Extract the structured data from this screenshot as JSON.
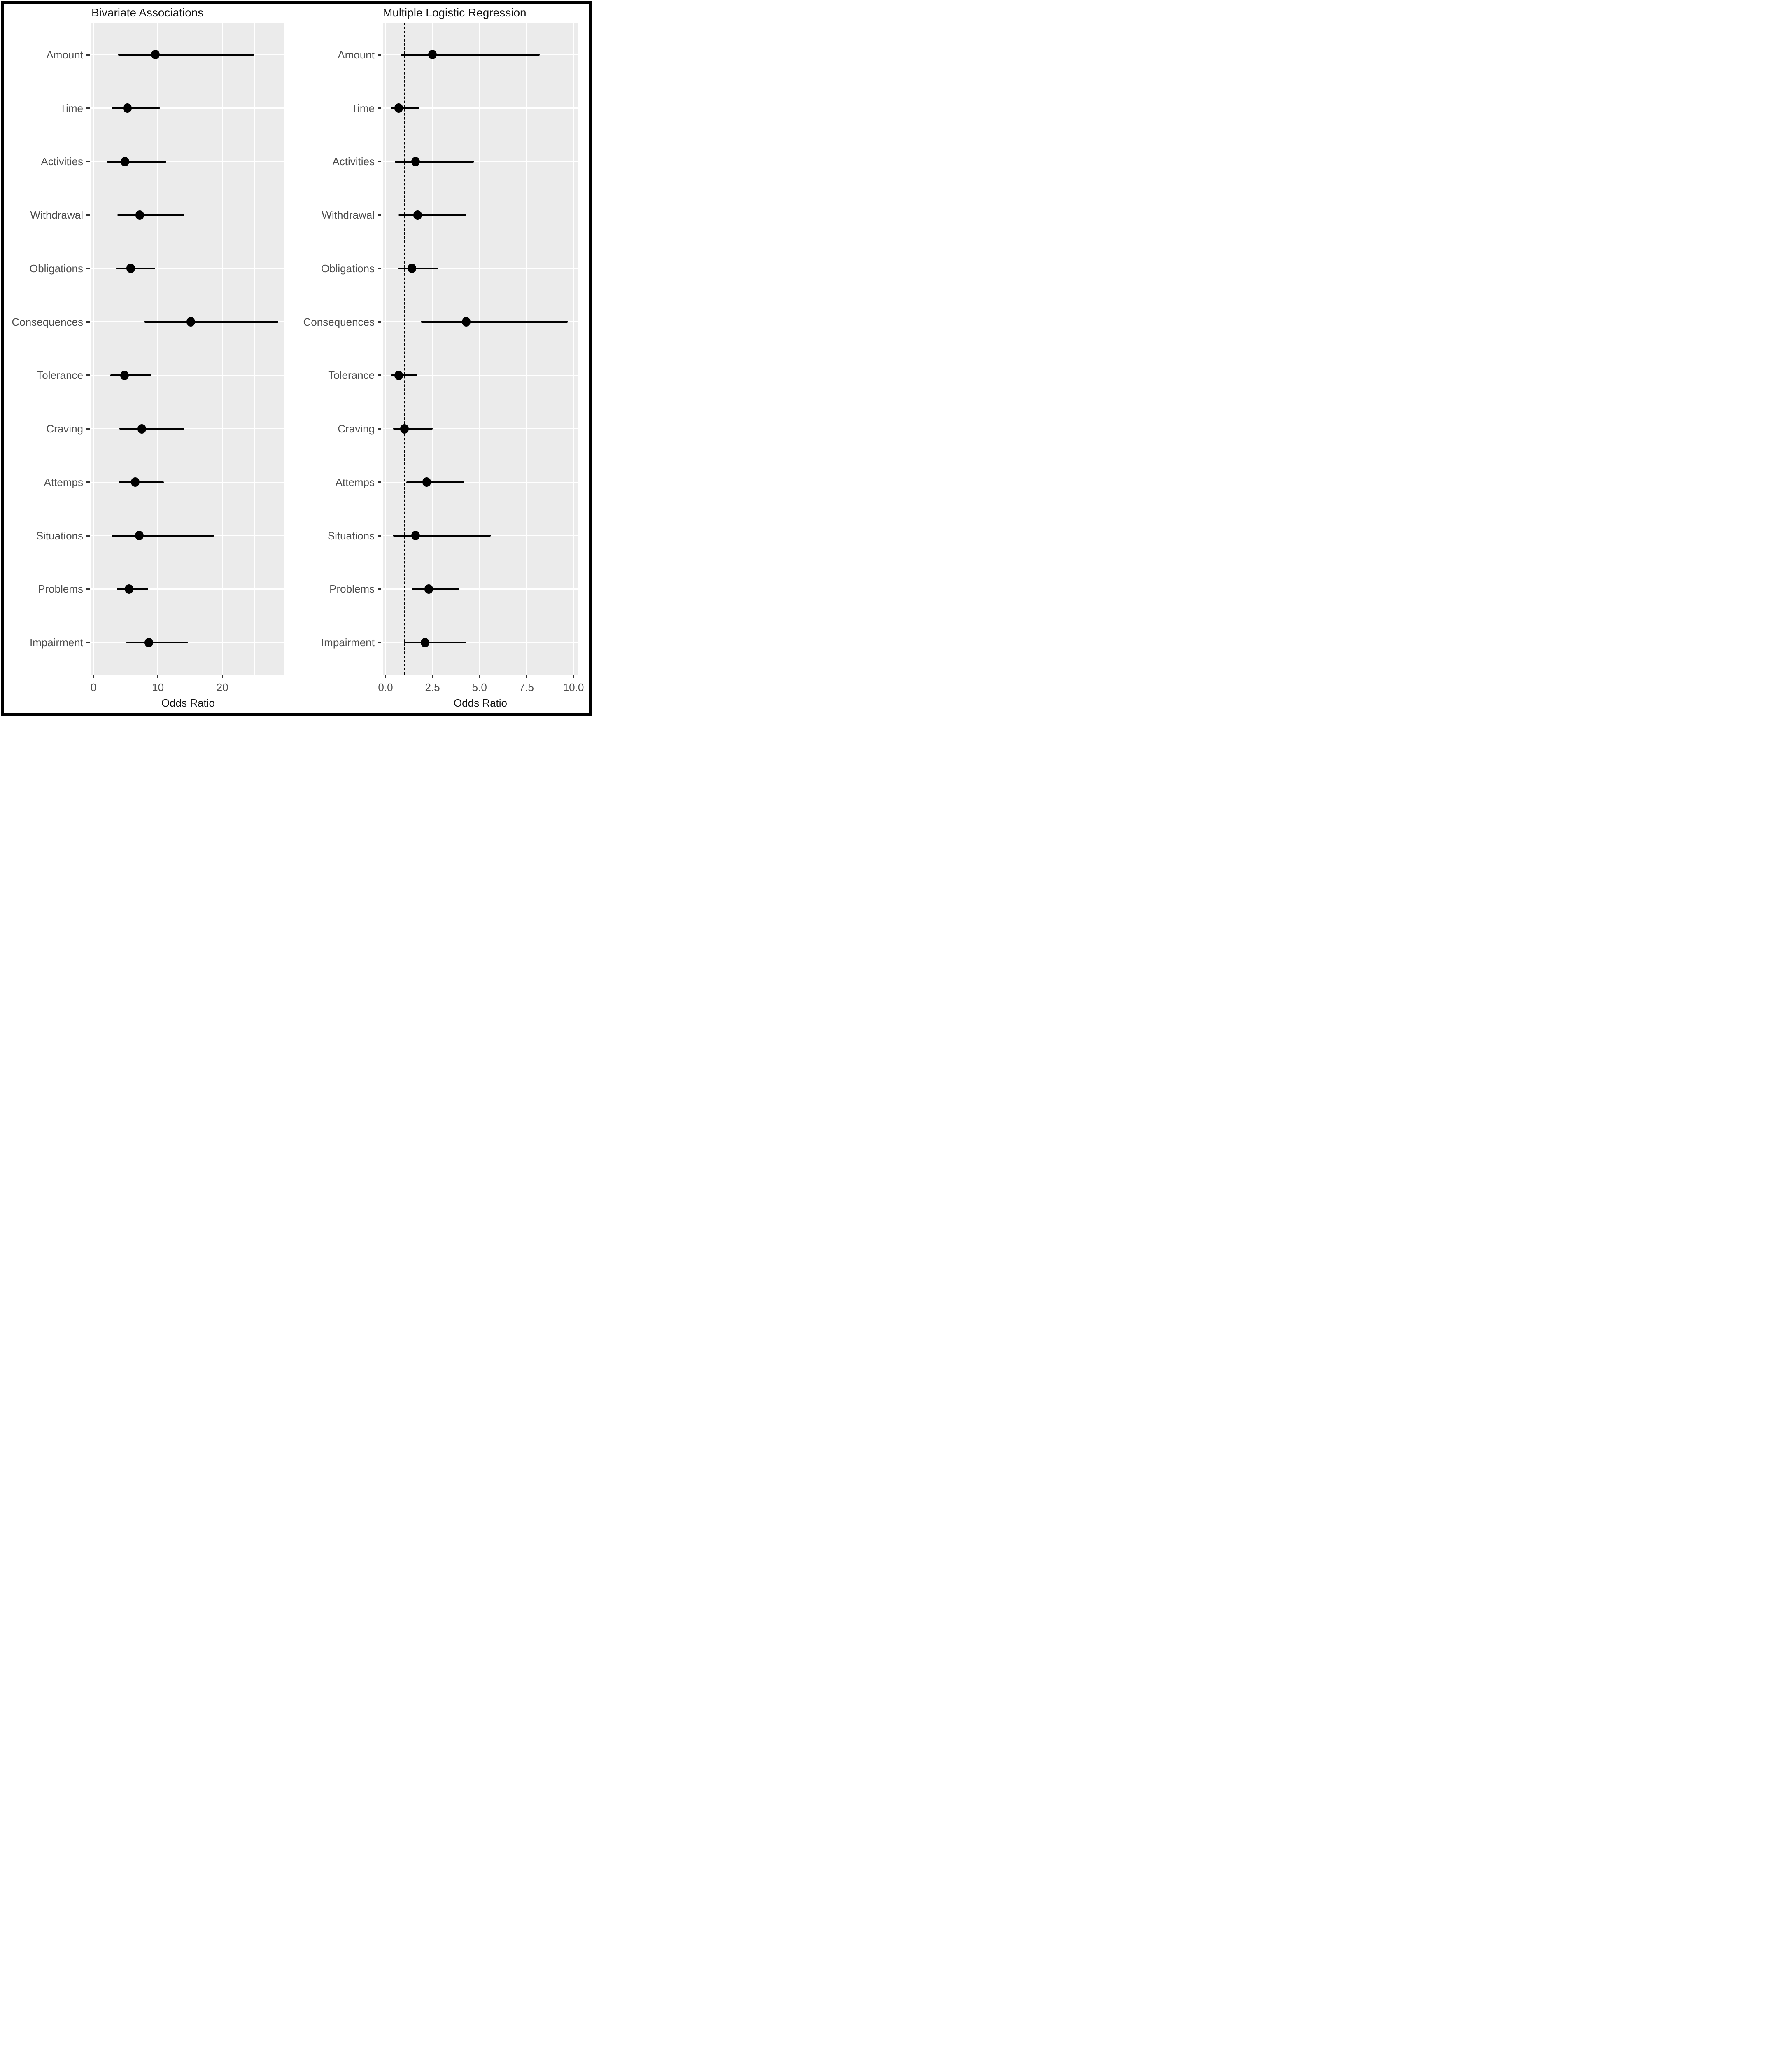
{
  "figure_title": "",
  "chart_data": {
    "type": "scatter",
    "variant": "forest-plot-dots-with-95ci-error-bars",
    "xlabel": "Odds Ratio",
    "grid": "on",
    "legend": "none",
    "panel_background": "#EBEBEB",
    "gridline_color": "#FFFFFF",
    "marker_color": "#000000",
    "ref_line_x": 1,
    "ref_line_style": "dashed",
    "categories_top_to_bottom": [
      "Amount",
      "Time",
      "Activities",
      "Withdrawal",
      "Obligations",
      "Consequences",
      "Tolerance",
      "Craving",
      "Attemps",
      "Situations",
      "Problems",
      "Impairment"
    ],
    "panels": [
      {
        "title": "Bivariate Associations",
        "xlim": [
          -0.3,
          29.6
        ],
        "ticks": [
          {
            "v": 0,
            "label": "0"
          },
          {
            "v": 10,
            "label": "10"
          },
          {
            "v": 20,
            "label": "20"
          }
        ],
        "minor_ticks": [
          5,
          15,
          25
        ],
        "rows": [
          {
            "category": "Amount",
            "or": 9.6,
            "ci_low": 3.8,
            "ci_high": 24.9
          },
          {
            "category": "Time",
            "or": 5.3,
            "ci_low": 2.8,
            "ci_high": 10.3
          },
          {
            "category": "Activities",
            "or": 4.9,
            "ci_low": 2.1,
            "ci_high": 11.3
          },
          {
            "category": "Withdrawal",
            "or": 7.2,
            "ci_low": 3.7,
            "ci_high": 14.1
          },
          {
            "category": "Obligations",
            "or": 5.8,
            "ci_low": 3.5,
            "ci_high": 9.6
          },
          {
            "category": "Consequences",
            "or": 15.1,
            "ci_low": 7.9,
            "ci_high": 28.7
          },
          {
            "category": "Tolerance",
            "or": 4.8,
            "ci_low": 2.6,
            "ci_high": 9.0
          },
          {
            "category": "Craving",
            "or": 7.5,
            "ci_low": 4.0,
            "ci_high": 14.1
          },
          {
            "category": "Attemps",
            "or": 6.5,
            "ci_low": 3.9,
            "ci_high": 10.9
          },
          {
            "category": "Situations",
            "or": 7.1,
            "ci_low": 2.8,
            "ci_high": 18.7
          },
          {
            "category": "Problems",
            "or": 5.5,
            "ci_low": 3.6,
            "ci_high": 8.5
          },
          {
            "category": "Impairment",
            "or": 8.6,
            "ci_low": 5.1,
            "ci_high": 14.6
          }
        ]
      },
      {
        "title": "Multiple Logistic Regression",
        "xlim": [
          -0.15,
          10.25
        ],
        "ticks": [
          {
            "v": 0,
            "label": "0.0"
          },
          {
            "v": 2.5,
            "label": "2.5"
          },
          {
            "v": 5,
            "label": "5.0"
          },
          {
            "v": 7.5,
            "label": "7.5"
          },
          {
            "v": 10,
            "label": "10.0"
          }
        ],
        "minor_ticks": [
          1.25,
          3.75,
          6.25,
          8.75
        ],
        "rows": [
          {
            "category": "Amount",
            "or": 2.5,
            "ci_low": 0.8,
            "ci_high": 8.2
          },
          {
            "category": "Time",
            "or": 0.7,
            "ci_low": 0.3,
            "ci_high": 1.8
          },
          {
            "category": "Activities",
            "or": 1.6,
            "ci_low": 0.5,
            "ci_high": 4.7
          },
          {
            "category": "Withdrawal",
            "or": 1.7,
            "ci_low": 0.7,
            "ci_high": 4.3
          },
          {
            "category": "Obligations",
            "or": 1.4,
            "ci_low": 0.7,
            "ci_high": 2.8
          },
          {
            "category": "Consequences",
            "or": 4.3,
            "ci_low": 1.9,
            "ci_high": 9.7
          },
          {
            "category": "Tolerance",
            "or": 0.7,
            "ci_low": 0.3,
            "ci_high": 1.7
          },
          {
            "category": "Craving",
            "or": 1.0,
            "ci_low": 0.4,
            "ci_high": 2.5
          },
          {
            "category": "Attemps",
            "or": 2.2,
            "ci_low": 1.1,
            "ci_high": 4.2
          },
          {
            "category": "Situations",
            "or": 1.6,
            "ci_low": 0.4,
            "ci_high": 5.6
          },
          {
            "category": "Problems",
            "or": 2.3,
            "ci_low": 1.4,
            "ci_high": 3.9
          },
          {
            "category": "Impairment",
            "or": 2.1,
            "ci_low": 1.0,
            "ci_high": 4.3
          }
        ]
      }
    ]
  }
}
